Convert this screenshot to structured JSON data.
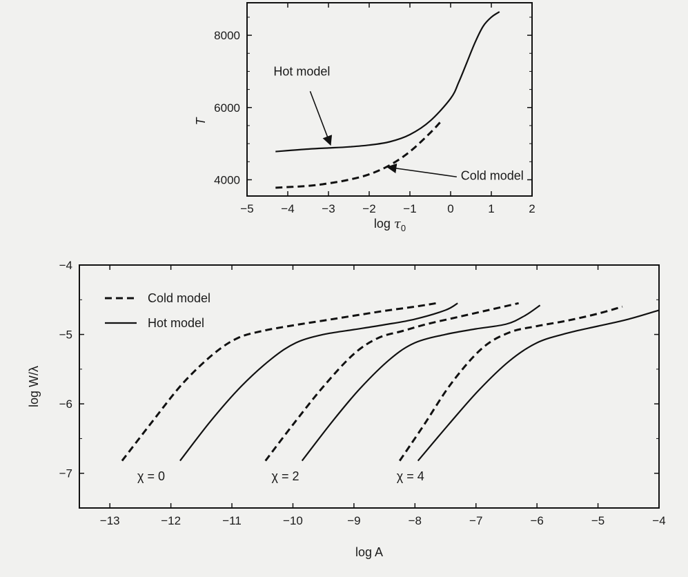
{
  "chart_data": [
    {
      "type": "line",
      "title": "",
      "xlabel_main": "log",
      "xlabel_sub": "0",
      "xlabel_symbol": "τ",
      "ylabel": "T",
      "xlim": [
        -5,
        2
      ],
      "ylim": [
        3550,
        8900
      ],
      "xticks": [
        -5,
        -4,
        -3,
        -2,
        -1,
        0,
        1,
        2
      ],
      "xtick_labels": [
        "−5",
        "−4",
        "−3",
        "−2",
        "−1",
        "0",
        "1",
        "2"
      ],
      "yticks": [
        4000,
        6000,
        8000
      ],
      "ytick_labels": [
        "4000",
        "6000",
        "8000"
      ],
      "grid": false,
      "series": [
        {
          "name": "Hot model",
          "style": "solid",
          "x": [
            -4.3,
            -3.5,
            -3.0,
            -2.5,
            -2.0,
            -1.5,
            -1.0,
            -0.5,
            0.0,
            0.2,
            0.4,
            0.6,
            0.8,
            1.0,
            1.2
          ],
          "y": [
            4780,
            4850,
            4880,
            4910,
            4960,
            5050,
            5250,
            5630,
            6250,
            6700,
            7250,
            7800,
            8250,
            8500,
            8650
          ]
        },
        {
          "name": "Cold model",
          "style": "dashed",
          "x": [
            -4.3,
            -3.5,
            -3.0,
            -2.5,
            -2.0,
            -1.5,
            -1.0,
            -0.5,
            -0.25
          ],
          "y": [
            3780,
            3830,
            3900,
            4000,
            4150,
            4400,
            4780,
            5300,
            5600
          ]
        }
      ],
      "annotations": [
        {
          "text": "Hot model",
          "x": -4.35,
          "y": 6880,
          "arrow_to_x": -2.95,
          "arrow_to_y": 4910
        },
        {
          "text": "Cold model",
          "x": 0.25,
          "y": 4000,
          "arrow_to_x": -1.55,
          "arrow_to_y": 4350
        }
      ]
    },
    {
      "type": "line",
      "title": "",
      "xlabel": "log A",
      "ylabel": "log W/λ",
      "xlim": [
        -13.5,
        -4
      ],
      "ylim": [
        -7.5,
        -4
      ],
      "xticks": [
        -13,
        -12,
        -11,
        -10,
        -9,
        -8,
        -7,
        -6,
        -5,
        -4
      ],
      "xtick_labels": [
        "−13",
        "−12",
        "−11",
        "−10",
        "−9",
        "−8",
        "−7",
        "−6",
        "−5",
        "−4"
      ],
      "yticks": [
        -4,
        -5,
        -6,
        -7
      ],
      "ytick_labels": [
        "−4",
        "−5",
        "−6",
        "−7"
      ],
      "grid": false,
      "legend": {
        "position": "top-left",
        "entries": [
          {
            "label": "Cold model",
            "style": "dashed"
          },
          {
            "label": "Hot model",
            "style": "solid"
          }
        ]
      },
      "series": [
        {
          "name": "Cold model",
          "chi": "0",
          "style": "dashed",
          "x": [
            -12.8,
            -12.3,
            -11.8,
            -11.3,
            -10.9,
            -10.5,
            -10.0,
            -9.5,
            -9.0,
            -8.5,
            -8.0,
            -7.65
          ],
          "y": [
            -6.82,
            -6.25,
            -5.7,
            -5.28,
            -5.05,
            -4.95,
            -4.87,
            -4.8,
            -4.73,
            -4.66,
            -4.6,
            -4.55
          ]
        },
        {
          "name": "Hot model",
          "chi": "0",
          "style": "solid",
          "x": [
            -11.85,
            -11.35,
            -10.85,
            -10.35,
            -9.95,
            -9.5,
            -9.0,
            -8.5,
            -8.0,
            -7.5,
            -7.3
          ],
          "y": [
            -6.82,
            -6.25,
            -5.75,
            -5.35,
            -5.12,
            -5.0,
            -4.93,
            -4.86,
            -4.78,
            -4.65,
            -4.55
          ]
        },
        {
          "name": "Cold model",
          "chi": "2",
          "style": "dashed",
          "x": [
            -10.45,
            -10.0,
            -9.5,
            -9.0,
            -8.6,
            -8.2,
            -7.8,
            -7.3,
            -6.8,
            -6.3
          ],
          "y": [
            -6.82,
            -6.3,
            -5.75,
            -5.28,
            -5.05,
            -4.95,
            -4.85,
            -4.75,
            -4.65,
            -4.55
          ]
        },
        {
          "name": "Hot model",
          "chi": "2",
          "style": "solid",
          "x": [
            -9.85,
            -9.35,
            -8.9,
            -8.4,
            -8.0,
            -7.5,
            -7.0,
            -6.5,
            -6.2,
            -5.95
          ],
          "y": [
            -6.82,
            -6.25,
            -5.78,
            -5.35,
            -5.12,
            -5.0,
            -4.92,
            -4.85,
            -4.73,
            -4.58
          ]
        },
        {
          "name": "Cold model",
          "chi": "4",
          "style": "dashed",
          "x": [
            -8.25,
            -7.85,
            -7.4,
            -6.9,
            -6.45,
            -6.0,
            -5.5,
            -5.0,
            -4.6
          ],
          "y": [
            -6.82,
            -6.3,
            -5.7,
            -5.2,
            -4.97,
            -4.88,
            -4.8,
            -4.7,
            -4.6
          ]
        },
        {
          "name": "Hot model",
          "chi": "4",
          "style": "solid",
          "x": [
            -7.95,
            -7.45,
            -6.95,
            -6.45,
            -6.0,
            -5.5,
            -5.0,
            -4.5,
            -4.0
          ],
          "y": [
            -6.82,
            -6.3,
            -5.8,
            -5.38,
            -5.12,
            -4.98,
            -4.88,
            -4.78,
            -4.65
          ]
        }
      ],
      "curve_labels": [
        {
          "text": "χ = 0",
          "x": -12.55,
          "y": -7.1
        },
        {
          "text": "χ = 2",
          "x": -10.35,
          "y": -7.1
        },
        {
          "text": "χ = 4",
          "x": -8.3,
          "y": -7.1
        }
      ]
    }
  ]
}
